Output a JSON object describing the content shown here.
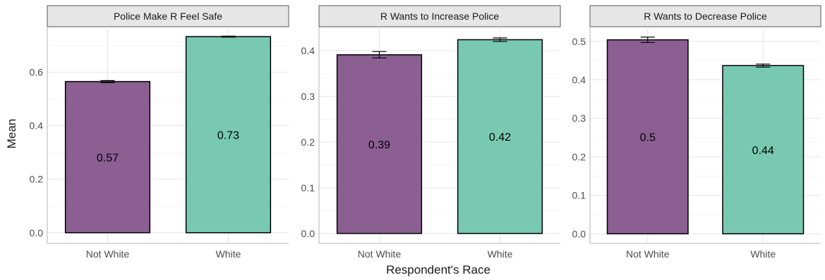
{
  "chart_data": {
    "type": "bar",
    "xlabel": "Respondent's Race",
    "ylabel": "Mean",
    "colors": {
      "Not White": "#8c5f93",
      "White": "#79c9b1",
      "strip": "#e6e6e6",
      "grid_major": "#e5e5e5",
      "grid_minor": "#f2f2f2"
    },
    "panels": [
      {
        "title": "Police Make R Feel Safe",
        "ylim": [
          -0.04,
          0.77
        ],
        "yticks": [
          0.0,
          0.2,
          0.4,
          0.6
        ],
        "ytick_labels": [
          "0.0",
          "0.2",
          "0.4",
          "0.6"
        ],
        "categories": [
          "Not White",
          "White"
        ],
        "values": [
          0.565,
          0.733
        ],
        "errors": [
          0.004,
          0.002
        ],
        "labels": [
          "0.57",
          "0.73"
        ]
      },
      {
        "title": "R Wants to Increase Police",
        "ylim": [
          -0.0218,
          0.4524
        ],
        "yticks": [
          0.0,
          0.1,
          0.2,
          0.3,
          0.4
        ],
        "ytick_labels": [
          "0.0",
          "0.1",
          "0.2",
          "0.3",
          "0.4"
        ],
        "categories": [
          "Not White",
          "White"
        ],
        "values": [
          0.391,
          0.424
        ],
        "errors": [
          0.007,
          0.004
        ],
        "labels": [
          "0.39",
          "0.42"
        ]
      },
      {
        "title": "R Wants to Decrease Police",
        "ylim": [
          -0.025,
          0.538
        ],
        "yticks": [
          0.0,
          0.1,
          0.2,
          0.3,
          0.4,
          0.5
        ],
        "ytick_labels": [
          "0.0",
          "0.1",
          "0.2",
          "0.3",
          "0.4",
          "0.5"
        ],
        "categories": [
          "Not White",
          "White"
        ],
        "values": [
          0.504,
          0.437
        ],
        "errors": [
          0.007,
          0.004
        ],
        "labels": [
          "0.5",
          "0.44"
        ]
      }
    ]
  }
}
